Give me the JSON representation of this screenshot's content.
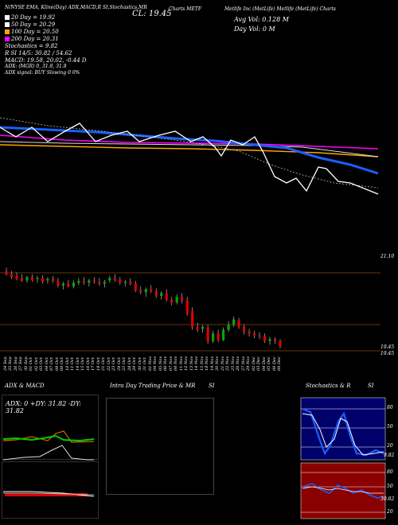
{
  "header": {
    "top_line": "N/NYSE EMA, Kline(Day) ADX,MACD,R SI,Stochastics,MR",
    "cl_label": "CL: 19.45",
    "symbol": "Charts METF",
    "company": "Metlife  Inc (MetLife) Metlife (MetLife) Charts",
    "avg_vol": "Avg Vol: 0.128  M",
    "day_vol": "Day Vol: 0  M"
  },
  "legend": {
    "items": [
      {
        "label": "20  Day = 19.92",
        "color": "#ffffff"
      },
      {
        "label": "50  Day = 20.29",
        "color": "#ffffff"
      },
      {
        "label": "100  Day = 20.50",
        "color": "#ffa500"
      },
      {
        "label": "200  Day = 20.31",
        "color": "#ff00ff"
      }
    ],
    "stochastics": "Stochastics = 9.82",
    "rsi": "R          SI 14/5: 30.82 / 54.62",
    "macd": "MACD: 19.58, 20.02, -0.44  D",
    "adx": "ADX:                              (MGR) 0, 31.8,  31.8",
    "adx_signal": "ADX  signal:                                        BUY Slowing 0 0%"
  },
  "price_levels": {
    "top": "21.10",
    "low1": "19.45",
    "low2": "19.45"
  },
  "dates": [
    "24 Sep",
    "25 Sep",
    "26 Sep",
    "27 Sep",
    "30 Sep",
    "01 Oct",
    "02 Oct",
    "03 Oct",
    "04 Oct",
    "07 Oct",
    "08 Oct",
    "09 Oct",
    "10 Oct",
    "11 Oct",
    "14 Oct",
    "15 Oct",
    "16 Oct",
    "17 Oct",
    "18 Oct",
    "21 Oct",
    "22 Oct",
    "23 Oct",
    "24 Oct",
    "25 Oct",
    "28 Oct",
    "29 Oct",
    "30 Oct",
    "31 Oct",
    "01 Nov",
    "04 Nov",
    "05 Nov",
    "06 Nov",
    "07 Nov",
    "08 Nov",
    "11 Nov",
    "12 Nov",
    "13 Nov",
    "14 Nov",
    "15 Nov",
    "18 Nov",
    "19 Nov",
    "20 Nov",
    "21 Nov",
    "22 Nov",
    "25 Nov",
    "26 Nov",
    "27 Nov",
    "29 Nov",
    "02 Dec",
    "03 Dec",
    "04 Dec",
    "05 Dec",
    "06 Dec",
    "09 Dec"
  ],
  "panels": {
    "adx_title": "ADX  & MACD",
    "adx_readout": "ADX: 0   +DY: 31.82   -DY: 31.82",
    "intraday_title": "Intra  Day Trading Price  & MR",
    "intraday_si": "SI",
    "stoch_title": "Stochastics & R",
    "stoch_si": "SI",
    "stoch_ticks": [
      "80",
      "50",
      "20"
    ],
    "stoch_last": "9.82",
    "rsi_ticks": [
      "80",
      "50",
      "20"
    ],
    "rsi_last": "30.82"
  },
  "colors": {
    "up": "#00aa00",
    "down": "#dd0000",
    "ema20": "#ffffff",
    "ema50": "#ffffff",
    "ema100": "#ffa500",
    "ema200": "#ff00ff",
    "blue": "#1a5fff",
    "stoch_bg": "#00006a",
    "rsi_bg": "#8b0000"
  },
  "chart_data": {
    "type": "candlestick",
    "title": "",
    "ylim": [
      19.2,
      21.4
    ],
    "candles": [
      {
        "date": "24 Sep",
        "o": 21.05,
        "h": 21.12,
        "l": 20.95,
        "c": 20.98
      },
      {
        "date": "25 Sep",
        "o": 20.98,
        "h": 21.05,
        "l": 20.88,
        "c": 20.92
      },
      {
        "date": "26 Sep",
        "o": 20.95,
        "h": 21.02,
        "l": 20.85,
        "c": 20.88
      },
      {
        "date": "27 Sep",
        "o": 20.9,
        "h": 20.98,
        "l": 20.82,
        "c": 20.85
      },
      {
        "date": "30 Sep",
        "o": 20.85,
        "h": 20.95,
        "l": 20.8,
        "c": 20.92
      },
      {
        "date": "01 Oct",
        "o": 20.92,
        "h": 20.98,
        "l": 20.82,
        "c": 20.86
      },
      {
        "date": "02 Oct",
        "o": 20.88,
        "h": 20.95,
        "l": 20.8,
        "c": 20.9
      },
      {
        "date": "03 Oct",
        "o": 20.9,
        "h": 20.96,
        "l": 20.78,
        "c": 20.82
      },
      {
        "date": "04 Oct",
        "o": 20.85,
        "h": 20.92,
        "l": 20.78,
        "c": 20.88
      },
      {
        "date": "07 Oct",
        "o": 20.88,
        "h": 20.94,
        "l": 20.8,
        "c": 20.84
      },
      {
        "date": "08 Oct",
        "o": 20.84,
        "h": 20.9,
        "l": 20.7,
        "c": 20.74
      },
      {
        "date": "09 Oct",
        "o": 20.74,
        "h": 20.82,
        "l": 20.66,
        "c": 20.78
      },
      {
        "date": "10 Oct",
        "o": 20.78,
        "h": 20.86,
        "l": 20.7,
        "c": 20.72
      },
      {
        "date": "11 Oct",
        "o": 20.72,
        "h": 20.85,
        "l": 20.68,
        "c": 20.8
      },
      {
        "date": "14 Oct",
        "o": 20.8,
        "h": 20.9,
        "l": 20.75,
        "c": 20.84
      },
      {
        "date": "15 Oct",
        "o": 20.84,
        "h": 20.92,
        "l": 20.76,
        "c": 20.8
      },
      {
        "date": "16 Oct",
        "o": 20.8,
        "h": 20.88,
        "l": 20.72,
        "c": 20.85
      },
      {
        "date": "17 Oct",
        "o": 20.85,
        "h": 20.92,
        "l": 20.78,
        "c": 20.82
      },
      {
        "date": "18 Oct",
        "o": 20.82,
        "h": 20.9,
        "l": 20.74,
        "c": 20.78
      },
      {
        "date": "21 Oct",
        "o": 20.78,
        "h": 20.86,
        "l": 20.7,
        "c": 20.82
      },
      {
        "date": "22 Oct",
        "o": 20.85,
        "h": 20.95,
        "l": 20.8,
        "c": 20.9
      },
      {
        "date": "23 Oct",
        "o": 20.9,
        "h": 20.98,
        "l": 20.82,
        "c": 20.86
      },
      {
        "date": "24 Oct",
        "o": 20.86,
        "h": 20.92,
        "l": 20.76,
        "c": 20.8
      },
      {
        "date": "25 Oct",
        "o": 20.8,
        "h": 20.86,
        "l": 20.72,
        "c": 20.82
      },
      {
        "date": "28 Oct",
        "o": 20.82,
        "h": 20.9,
        "l": 20.74,
        "c": 20.78
      },
      {
        "date": "29 Oct",
        "o": 20.78,
        "h": 20.84,
        "l": 20.6,
        "c": 20.64
      },
      {
        "date": "30 Oct",
        "o": 20.64,
        "h": 20.72,
        "l": 20.55,
        "c": 20.6
      },
      {
        "date": "31 Oct",
        "o": 20.6,
        "h": 20.7,
        "l": 20.5,
        "c": 20.66
      },
      {
        "date": "01 Nov",
        "o": 20.66,
        "h": 20.75,
        "l": 20.58,
        "c": 20.62
      },
      {
        "date": "04 Nov",
        "o": 20.62,
        "h": 20.68,
        "l": 20.48,
        "c": 20.52
      },
      {
        "date": "05 Nov",
        "o": 20.52,
        "h": 20.62,
        "l": 20.44,
        "c": 20.58
      },
      {
        "date": "06 Nov",
        "o": 20.58,
        "h": 20.66,
        "l": 20.4,
        "c": 20.44
      },
      {
        "date": "07 Nov",
        "o": 20.44,
        "h": 20.5,
        "l": 20.32,
        "c": 20.38
      },
      {
        "date": "08 Nov",
        "o": 20.38,
        "h": 20.56,
        "l": 20.34,
        "c": 20.5
      },
      {
        "date": "11 Nov",
        "o": 20.5,
        "h": 20.58,
        "l": 20.36,
        "c": 20.42
      },
      {
        "date": "12 Nov",
        "o": 20.42,
        "h": 20.5,
        "l": 20.1,
        "c": 20.14
      },
      {
        "date": "13 Nov",
        "o": 20.2,
        "h": 20.28,
        "l": 19.8,
        "c": 19.86
      },
      {
        "date": "14 Nov",
        "o": 19.86,
        "h": 19.95,
        "l": 19.75,
        "c": 19.8
      },
      {
        "date": "15 Nov",
        "o": 19.82,
        "h": 19.9,
        "l": 19.74,
        "c": 19.86
      },
      {
        "date": "18 Nov",
        "o": 19.84,
        "h": 19.9,
        "l": 19.5,
        "c": 19.56
      },
      {
        "date": "19 Nov",
        "o": 19.56,
        "h": 19.78,
        "l": 19.52,
        "c": 19.72
      },
      {
        "date": "20 Nov",
        "o": 19.72,
        "h": 19.8,
        "l": 19.54,
        "c": 19.58
      },
      {
        "date": "21 Nov",
        "o": 19.58,
        "h": 19.85,
        "l": 19.56,
        "c": 19.8
      },
      {
        "date": "22 Nov",
        "o": 19.8,
        "h": 19.98,
        "l": 19.75,
        "c": 19.9
      },
      {
        "date": "25 Nov",
        "o": 19.9,
        "h": 20.08,
        "l": 19.86,
        "c": 20.02
      },
      {
        "date": "26 Nov",
        "o": 20.0,
        "h": 20.05,
        "l": 19.82,
        "c": 19.86
      },
      {
        "date": "27 Nov",
        "o": 19.86,
        "h": 19.92,
        "l": 19.7,
        "c": 19.76
      },
      {
        "date": "29 Nov",
        "o": 19.76,
        "h": 19.82,
        "l": 19.66,
        "c": 19.72
      },
      {
        "date": "02 Dec",
        "o": 19.72,
        "h": 19.78,
        "l": 19.62,
        "c": 19.68
      },
      {
        "date": "03 Dec",
        "o": 19.68,
        "h": 19.75,
        "l": 19.6,
        "c": 19.66
      },
      {
        "date": "04 Dec",
        "o": 19.66,
        "h": 19.72,
        "l": 19.52,
        "c": 19.56
      },
      {
        "date": "05 Dec",
        "o": 19.56,
        "h": 19.65,
        "l": 19.48,
        "c": 19.6
      },
      {
        "date": "06 Dec",
        "o": 19.6,
        "h": 19.64,
        "l": 19.5,
        "c": 19.56
      },
      {
        "date": "09 Dec",
        "o": 19.56,
        "h": 19.6,
        "l": 19.4,
        "c": 19.45
      }
    ]
  }
}
